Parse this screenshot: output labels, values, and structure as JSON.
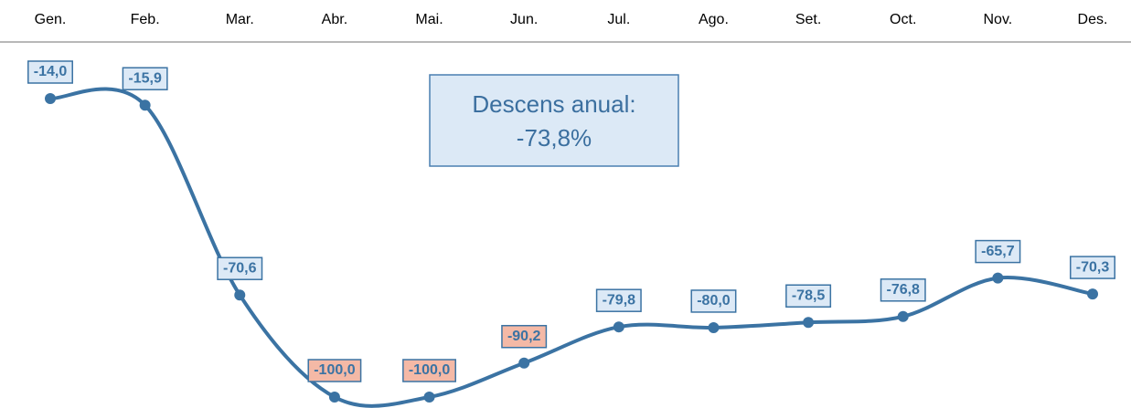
{
  "chart_data": {
    "type": "line",
    "categories": [
      "Gen.",
      "Feb.",
      "Mar.",
      "Abr.",
      "Mai.",
      "Jun.",
      "Jul.",
      "Ago.",
      "Set.",
      "Oct.",
      "Nov.",
      "Des."
    ],
    "series": [
      {
        "color": "#3b73a3",
        "values": [
          -14.0,
          -15.9,
          -70.6,
          -100.0,
          -100.0,
          -90.2,
          -79.8,
          -80.0,
          -78.5,
          -76.8,
          -65.7,
          -70.3
        ],
        "value_labels": [
          "-14,0",
          "-15,9",
          "-70,6",
          "-100,0",
          "-100,0",
          "-90,2",
          "-79,8",
          "-80,0",
          "-78,5",
          "-76,8",
          "-65,7",
          "-70,3"
        ],
        "label_fills": [
          "#dce9f6",
          "#dce9f6",
          "#dce9f6",
          "#f4b9a6",
          "#f4b9a6",
          "#f4b9a6",
          "#dce9f6",
          "#dce9f6",
          "#dce9f6",
          "#dce9f6",
          "#dce9f6",
          "#dce9f6"
        ]
      }
    ],
    "annotation": [
      "Descens anual:",
      "-73,8%"
    ]
  }
}
